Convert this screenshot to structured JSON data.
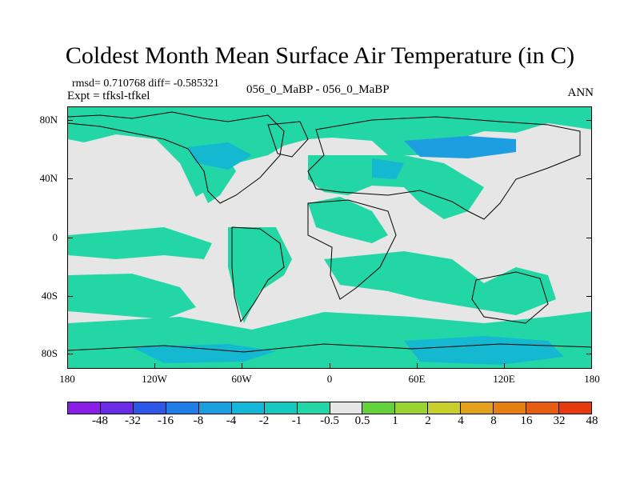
{
  "figure": {
    "title": "Coldest Month Mean Surface Air Temperature (in C)",
    "stats": "rmsd= 0.710768 diff= -0.585321",
    "expt_label": "Expt = tfksl-tfkel",
    "experiments": "056_0_MaBP - 056_0_MaBP",
    "season": "ANN"
  },
  "map": {
    "lat_labels": [
      "80N",
      "40N",
      "0",
      "40S",
      "80S"
    ],
    "lon_labels": [
      "180",
      "120W",
      "60W",
      "0",
      "60E",
      "120E",
      "180"
    ],
    "background_color": "#e6e6e6",
    "regions": [
      {
        "category": "-1 to -0.5",
        "color": "#22d6a5"
      },
      {
        "category": "-2 to -1",
        "color": "#15b8d1"
      },
      {
        "category": "-4 to -2",
        "color": "#1d9ee0"
      },
      {
        "category": "-0.5 to 0.5",
        "color": "#e6e6e6"
      }
    ]
  },
  "colorbar": {
    "labels": [
      "-48",
      "-32",
      "-16",
      "-8",
      "-4",
      "-2",
      "-1",
      "-0.5",
      "0.5",
      "1",
      "2",
      "4",
      "8",
      "16",
      "32",
      "48"
    ],
    "colors": [
      "#8b1ee6",
      "#6a2ce6",
      "#2d57e6",
      "#1e7de6",
      "#1a9ee0",
      "#14b7d8",
      "#16c9c0",
      "#22d6a5",
      "#e6e6e6",
      "#63d23a",
      "#99d431",
      "#c9cf2a",
      "#e3a01b",
      "#e67f12",
      "#e65d0f",
      "#e63a0c"
    ]
  }
}
